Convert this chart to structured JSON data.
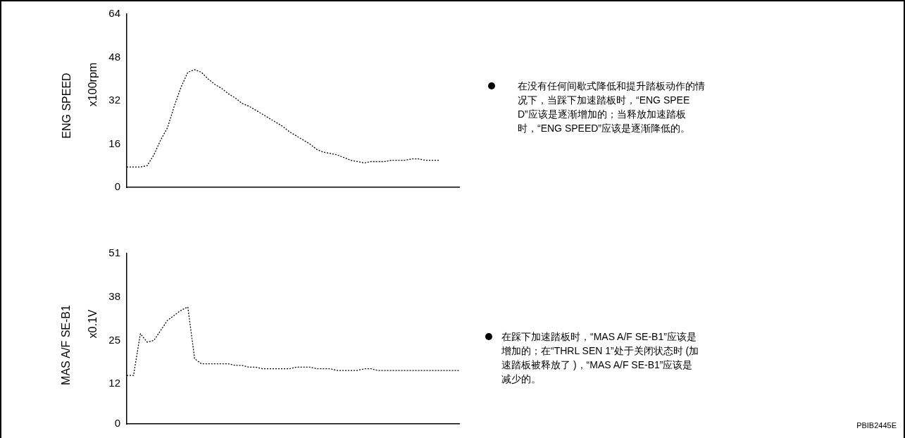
{
  "chart_data": [
    {
      "type": "line",
      "title": "ENG SPEED",
      "ylabel": "x100rpm",
      "categories": [
        null,
        null,
        null,
        null,
        null,
        null,
        null,
        null,
        null,
        null,
        null,
        null,
        null,
        null,
        null,
        null,
        null,
        null,
        null,
        null,
        null,
        null,
        null,
        null,
        null,
        null,
        null,
        null,
        null,
        null,
        null,
        null,
        null,
        null,
        null,
        null,
        null,
        null,
        null,
        null,
        null,
        null,
        null,
        null,
        null,
        null,
        null,
        null,
        null,
        null
      ],
      "values": [
        7.5,
        7.5,
        7.5,
        8,
        12,
        17.5,
        22,
        30,
        37,
        42.5,
        43.5,
        42.5,
        40,
        38,
        36.5,
        34.5,
        33,
        31,
        30,
        28.5,
        27,
        25.5,
        24,
        22.5,
        20.5,
        19,
        17.5,
        16,
        14,
        13,
        12.5,
        12,
        11,
        10,
        9.5,
        9,
        9.5,
        9.5,
        9.5,
        10,
        10,
        10,
        10.5,
        10.5,
        10,
        10,
        10,
        null,
        null,
        null
      ],
      "color": "#000000",
      "line_style": "dotted",
      "marker": "none",
      "grid": false,
      "legend": false,
      "tick_labels": "y",
      "ylim": [
        0,
        64
      ],
      "yticks": [
        0,
        16,
        32,
        48,
        64
      ],
      "annotations": [
        "在没有任何间歇式降低和提升踏板动作的情况下，当踩下加速踏板时，“ENG SPEED”应该是逐渐增加的；当释放加速踏板时，“ENG SPEED”应该是逐渐降低的。"
      ]
    },
    {
      "type": "line",
      "title": "MAS A/F SE-B1",
      "ylabel": "x0.1V",
      "categories": [
        null,
        null,
        null,
        null,
        null,
        null,
        null,
        null,
        null,
        null,
        null,
        null,
        null,
        null,
        null,
        null,
        null,
        null,
        null,
        null,
        null,
        null,
        null,
        null,
        null,
        null,
        null,
        null,
        null,
        null,
        null,
        null,
        null,
        null,
        null,
        null,
        null,
        null,
        null,
        null,
        null,
        null,
        null,
        null,
        null,
        null,
        null,
        null,
        null,
        null
      ],
      "values": [
        14.5,
        14.5,
        27,
        24.5,
        25,
        28,
        31,
        32.5,
        34,
        35,
        19.5,
        18,
        18,
        18,
        18,
        18,
        17.5,
        17.5,
        17,
        17,
        16.5,
        16.5,
        16.5,
        16.5,
        16.5,
        17,
        17,
        17,
        16.5,
        16.5,
        16.5,
        16,
        16,
        16,
        16,
        16.5,
        16.5,
        16,
        16,
        16,
        16,
        16,
        16,
        16,
        16,
        16,
        16,
        16,
        16,
        16
      ],
      "color": "#000000",
      "line_style": "dotted",
      "marker": "none",
      "grid": false,
      "legend": false,
      "tick_labels": "y",
      "ylim": [
        0,
        51
      ],
      "yticks": [
        0,
        12,
        25,
        38,
        51
      ],
      "annotations": [
        "在踩下加速踏板时，“MAS A/F SE-B1”应该是增加的；在“THRL SEN 1”处于关闭状态时 (加速踏板被释放了 )，“MAS A/F SE-B1”应该是减少的。",
        "PBIB2445E"
      ]
    }
  ]
}
